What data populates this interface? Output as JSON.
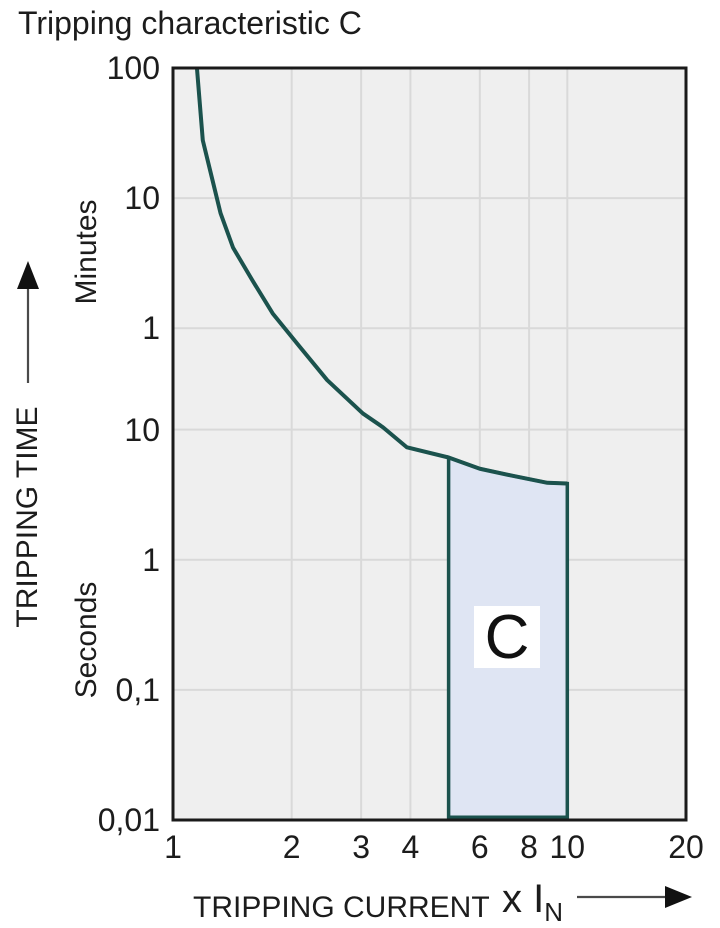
{
  "title": "Tripping characteristic C",
  "region_label": "C",
  "y_axis": {
    "title": "TRIPPING TIME",
    "unit_upper": "Minutes",
    "unit_lower": "Seconds",
    "tick_labels": [
      "100",
      "10",
      "1",
      "10",
      "1",
      "0,1",
      "0,01"
    ]
  },
  "x_axis": {
    "title": "TRIPPING CURRENT",
    "unit_prefix": "x I",
    "unit_subscript": "N",
    "tick_labels": [
      "1",
      "2",
      "3",
      "4",
      "6",
      "8",
      "10",
      "20"
    ]
  },
  "colors": {
    "curve": "#1b524d",
    "region_fill": "#dfe5f3",
    "region_border": "#1b524d",
    "plot_background": "#efefef",
    "gridline": "#d9d9d9",
    "plot_border": "#1a1a1a",
    "arrow_shaft": "#4a4a4a",
    "arrow_head": "#111111",
    "text": "#1c1c1c"
  },
  "chart_data": {
    "type": "line",
    "title": "Tripping characteristic C",
    "xlabel": "TRIPPING CURRENT (x IN)",
    "ylabel": "TRIPPING TIME (Minutes / Seconds)",
    "x_scale": "log",
    "y_scale": "log",
    "grid": true,
    "x_domain": [
      1,
      20
    ],
    "y_domain_seconds": [
      0.01,
      6000
    ],
    "x_ticks": [
      1,
      2,
      3,
      4,
      6,
      8,
      10,
      20
    ],
    "x_gridlines": [
      2,
      3,
      4,
      6,
      8,
      10
    ],
    "y_ticks_seconds": [
      6000,
      600,
      60,
      10,
      1,
      0.1,
      0.01
    ],
    "y_gridlines_seconds": [
      600,
      60,
      10,
      1,
      0.1
    ],
    "series": [
      {
        "name": "C tripping characteristic",
        "points_x_in_y_seconds": [
          [
            1.15,
            6000
          ],
          [
            1.19,
            1670
          ],
          [
            1.26,
            820
          ],
          [
            1.32,
            460
          ],
          [
            1.42,
            250
          ],
          [
            1.59,
            140
          ],
          [
            1.79,
            78
          ],
          [
            2.1,
            43
          ],
          [
            2.46,
            24
          ],
          [
            3.03,
            13.3
          ],
          [
            3.41,
            10.4
          ],
          [
            3.92,
            7.3
          ],
          [
            5.0,
            6.1
          ],
          [
            6.0,
            5.0
          ],
          [
            7.3,
            4.4
          ],
          [
            8.9,
            3.9
          ],
          [
            10.0,
            3.85
          ]
        ]
      }
    ],
    "region": {
      "label": "C",
      "x_range": [
        5,
        10
      ],
      "top_boundary": "curve",
      "bottom_seconds": 0.0105
    }
  }
}
